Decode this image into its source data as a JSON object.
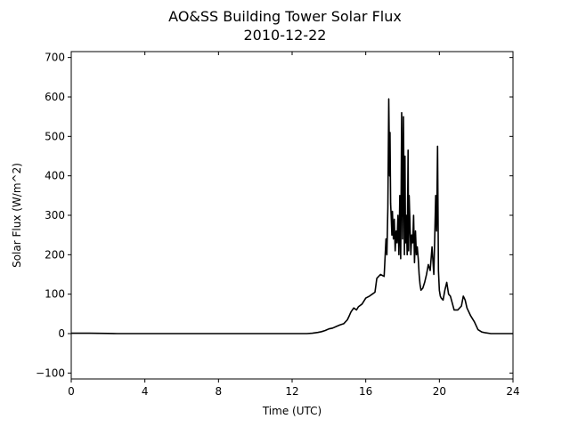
{
  "chart_data": {
    "type": "line",
    "title": "AO&SS Building Tower Solar Flux",
    "subtitle": "2010-12-22",
    "xlabel": "Time (UTC)",
    "ylabel": "Solar Flux (W/m^2)",
    "xlim": [
      0,
      24
    ],
    "ylim": [
      -115,
      715
    ],
    "xticks": [
      0,
      4,
      8,
      12,
      16,
      20,
      24
    ],
    "yticks": [
      -100,
      0,
      100,
      200,
      300,
      400,
      500,
      600,
      700
    ],
    "grid": false,
    "line_color": "#000000",
    "series": [
      {
        "x": [
          0,
          1,
          2,
          2.5,
          3,
          4,
          6,
          8,
          10,
          12,
          12.8,
          13.1,
          13.4,
          13.6,
          13.8,
          14.0,
          14.2,
          14.4,
          14.6,
          14.8,
          15.0,
          15.1,
          15.2,
          15.35,
          15.5,
          15.6,
          15.8,
          16.0,
          16.2,
          16.35,
          16.5,
          16.6,
          16.8,
          17.0,
          17.1,
          17.15,
          17.2,
          17.25,
          17.3,
          17.32,
          17.35,
          17.38,
          17.42,
          17.45,
          17.5,
          17.55,
          17.6,
          17.65,
          17.7,
          17.75,
          17.8,
          17.85,
          17.9,
          17.95,
          18.0,
          18.05,
          18.1,
          18.13,
          18.16,
          18.2,
          18.25,
          18.3,
          18.33,
          18.36,
          18.4,
          18.45,
          18.5,
          18.55,
          18.6,
          18.65,
          18.7,
          18.75,
          18.8,
          18.85,
          18.9,
          18.95,
          19.0,
          19.1,
          19.2,
          19.3,
          19.4,
          19.5,
          19.6,
          19.7,
          19.75,
          19.8,
          19.85,
          19.9,
          19.95,
          20.0,
          20.05,
          20.1,
          20.2,
          20.3,
          20.4,
          20.5,
          20.6,
          20.8,
          21.0,
          21.2,
          21.3,
          21.4,
          21.5,
          21.7,
          21.9,
          22.1,
          22.3,
          22.5,
          22.8,
          23.2,
          24
        ],
        "y": [
          1,
          1,
          0.5,
          0,
          0,
          0,
          0,
          0,
          0,
          0,
          0,
          1,
          3,
          5,
          8,
          12,
          14,
          18,
          22,
          25,
          35,
          45,
          55,
          65,
          60,
          68,
          75,
          90,
          95,
          100,
          105,
          140,
          150,
          145,
          240,
          200,
          320,
          595,
          400,
          510,
          330,
          300,
          250,
          310,
          240,
          290,
          210,
          260,
          230,
          300,
          200,
          350,
          190,
          560,
          240,
          550,
          200,
          450,
          230,
          300,
          200,
          465,
          210,
          350,
          280,
          200,
          250,
          230,
          300,
          180,
          260,
          200,
          220,
          190,
          150,
          125,
          110,
          115,
          130,
          150,
          175,
          160,
          220,
          150,
          250,
          350,
          260,
          475,
          160,
          110,
          95,
          90,
          85,
          110,
          130,
          100,
          95,
          60,
          60,
          70,
          95,
          85,
          65,
          45,
          30,
          10,
          4,
          2,
          0,
          0,
          0
        ]
      }
    ]
  }
}
